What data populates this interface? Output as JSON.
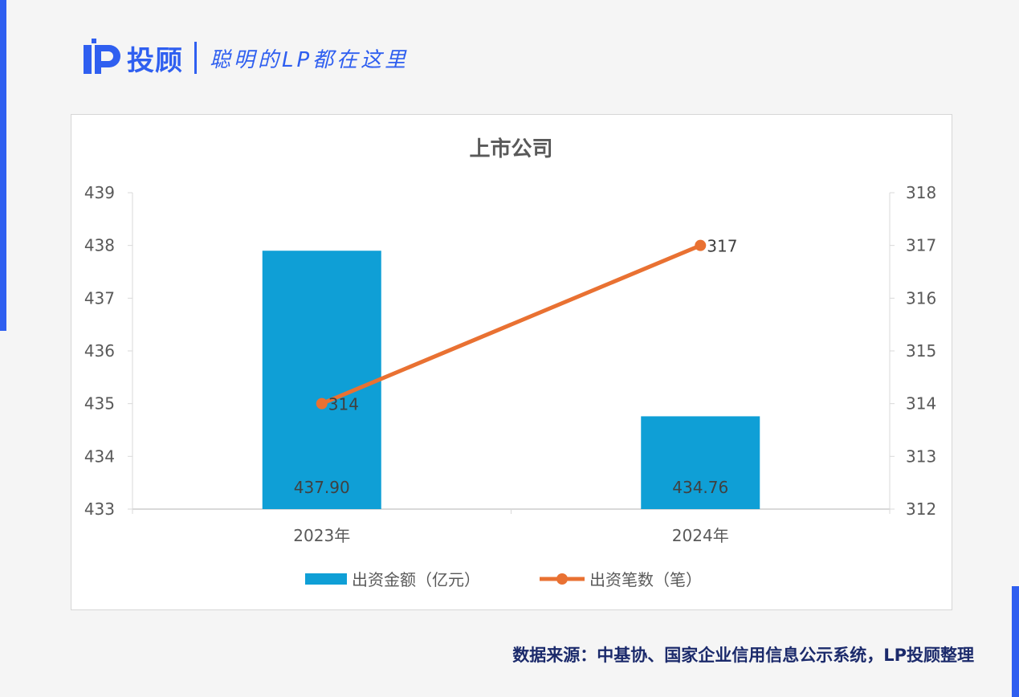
{
  "header": {
    "brand": "投顾",
    "logo_text": "LP",
    "slogan": "聪明的LP都在这里"
  },
  "colors": {
    "accent": "#2f5ff0",
    "bar": "#0f9fd6",
    "line": "#e97132"
  },
  "chart_data": {
    "type": "bar+line",
    "title": "上市公司",
    "categories": [
      "2023年",
      "2024年"
    ],
    "series": [
      {
        "name": "出资金额（亿元）",
        "type": "bar",
        "axis": "left",
        "values": [
          437.9,
          434.76
        ],
        "labels": [
          "437.90",
          "434.76"
        ]
      },
      {
        "name": "出资笔数（笔）",
        "type": "line",
        "axis": "right",
        "values": [
          314,
          317
        ],
        "labels": [
          "314",
          "317"
        ]
      }
    ],
    "y_left": {
      "min": 433,
      "max": 439,
      "ticks": [
        "433",
        "434",
        "435",
        "436",
        "437",
        "438",
        "439"
      ]
    },
    "y_right": {
      "min": 312,
      "max": 318,
      "ticks": [
        "312",
        "313",
        "314",
        "315",
        "316",
        "317",
        "318"
      ]
    },
    "grid": false,
    "legend": "bottom"
  },
  "footer": {
    "source": "数据来源：中基协、国家企业信用信息公示系统，LP投顾整理"
  }
}
